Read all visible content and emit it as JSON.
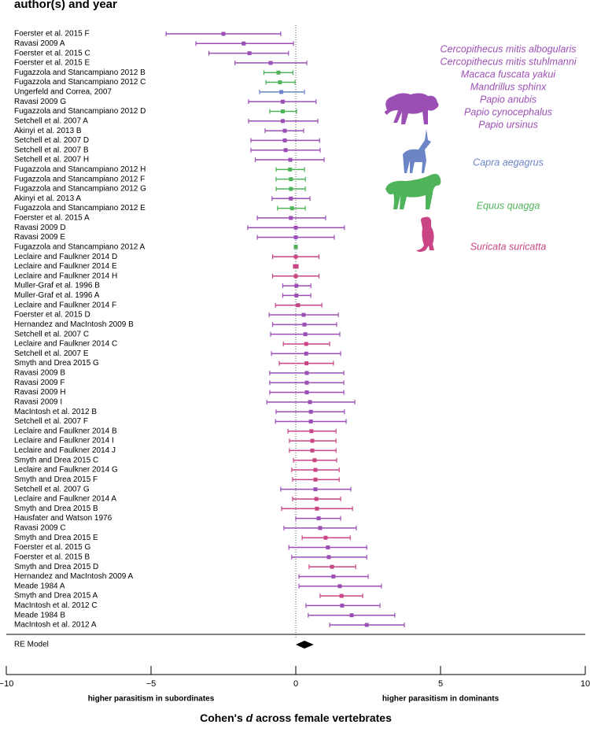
{
  "chart_data": {
    "type": "forest",
    "title": "author(s) and year",
    "categories": [
      "Foerster et al. 2015 F",
      "Ravasi 2009 A",
      "Foerster et al. 2015 C",
      "Foerster et al. 2015 E",
      "Fugazzola and Stancampiano 2012 B",
      "Fugazzola and Stancampiano 2012 C",
      "Ungerfeld and Correa, 2007",
      "Ravasi 2009 G",
      "Fugazzola and Stancampiano 2012 D",
      "Setchell et al. 2007 A",
      "Akinyi et al. 2013 B",
      "Setchell et al. 2007 D",
      "Setchell et al. 2007 B",
      "Setchell et al. 2007 H",
      "Fugazzola and Stancampiano 2012 H",
      "Fugazzola and Stancampiano 2012 F",
      "Fugazzola and Stancampiano 2012 G",
      "Akinyi et al. 2013 A",
      "Fugazzola and Stancampiano 2012 E",
      "Foerster et al. 2015 A",
      "Ravasi 2009 D",
      "Ravasi 2009 E",
      "Fugazzola and Stancampiano 2012 A",
      "Leclaire and Faulkner 2014 D",
      "Leclaire and Faulkner 2014 E",
      "Leclaire and Faulkner 2014 H",
      "Muller-Graf et al. 1996 B",
      "Muller-Graf et al. 1996 A",
      "Leclaire and Faulkner 2014 F",
      "Foerster et al. 2015 D",
      "Hernandez and MacIntosh 2009 B",
      "Setchell et al. 2007 C",
      "Leclaire and Faulkner 2014 C",
      "Setchell et al. 2007 E",
      "Smyth and Drea 2015 G",
      "Ravasi 2009 B",
      "Ravasi 2009 F",
      "Ravasi 2009 H",
      "Ravasi 2009 I",
      "MacIntosh et al. 2012 B",
      "Setchell et al. 2007 F",
      "Leclaire and Faulkner 2014 B",
      "Leclaire and Faulkner 2014 I",
      "Leclaire and Faulkner 2014 J",
      "Smyth and Drea 2015 C",
      "Leclaire and Faulkner 2014 G",
      "Smyth and Drea 2015 F",
      "Setchell et al. 2007 G",
      "Leclaire and Faulkner 2014 A",
      "Smyth and Drea 2015 B",
      "Hausfater and Watson 1976",
      "Ravasi 2009 C",
      "Smyth and Drea 2015 E",
      "Foerster et al. 2015 G",
      "Foerster et al. 2015 B",
      "Smyth and Drea 2015 D",
      "Hernandez and MacIntosh 2009 A",
      "Meade 1984 A",
      "Smyth and Drea 2015 A",
      "MacIntosh et al. 2012 C",
      "Meade 1984 B",
      "MacIntosh et al. 2012 A"
    ],
    "values": [
      -2.5,
      -1.8,
      -1.6,
      -0.87,
      -0.6,
      -0.55,
      -0.5,
      -0.45,
      -0.45,
      -0.45,
      -0.38,
      -0.38,
      -0.35,
      -0.19,
      -0.2,
      -0.17,
      -0.17,
      -0.17,
      -0.13,
      -0.17,
      0,
      0,
      0,
      0,
      0,
      0,
      0.02,
      0.02,
      0.08,
      0.27,
      0.3,
      0.33,
      0.36,
      0.36,
      0.37,
      0.38,
      0.38,
      0.38,
      0.49,
      0.52,
      0.52,
      0.54,
      0.57,
      0.57,
      0.65,
      0.68,
      0.68,
      0.68,
      0.71,
      0.73,
      0.79,
      0.84,
      1.03,
      1.11,
      1.14,
      1.25,
      1.3,
      1.52,
      1.58,
      1.6,
      1.93,
      2.45
    ],
    "ci_lower": [
      -4.48,
      -3.45,
      -3.0,
      -2.1,
      -1.1,
      -1.03,
      -1.25,
      -1.63,
      -0.9,
      -1.63,
      -1.06,
      -1.55,
      -1.55,
      -1.4,
      -0.68,
      -0.68,
      -0.68,
      -0.82,
      -0.63,
      -1.33,
      -1.66,
      -1.33,
      -0.05,
      -0.8,
      -0.08,
      -0.8,
      -0.45,
      -0.45,
      -0.7,
      -0.92,
      -0.8,
      -0.87,
      -0.43,
      -0.84,
      -0.57,
      -0.9,
      -0.9,
      -0.9,
      -1.0,
      -0.68,
      -0.7,
      -0.27,
      -0.22,
      -0.22,
      -0.08,
      -0.14,
      -0.11,
      -0.52,
      -0.11,
      -0.49,
      0,
      -0.41,
      0.22,
      -0.24,
      -0.14,
      0.46,
      0.11,
      0.11,
      0.84,
      0.35,
      0.43,
      1.17
    ],
    "ci_upper": [
      -0.52,
      -0.08,
      -0.25,
      0.38,
      -0.1,
      -0.03,
      0.3,
      0.7,
      0.03,
      0.76,
      0.27,
      0.82,
      0.84,
      0.98,
      0.3,
      0.33,
      0.33,
      0.49,
      0.33,
      1.03,
      1.68,
      1.33,
      0.05,
      0.8,
      0.08,
      0.8,
      0.52,
      0.52,
      0.9,
      1.47,
      1.41,
      1.52,
      1.17,
      1.55,
      1.3,
      1.66,
      1.66,
      1.66,
      2.04,
      1.68,
      1.74,
      1.39,
      1.39,
      1.39,
      1.41,
      1.5,
      1.5,
      1.9,
      1.55,
      1.96,
      1.55,
      2.09,
      1.88,
      2.45,
      2.45,
      2.07,
      2.5,
      2.96,
      2.31,
      2.91,
      3.42,
      3.75
    ],
    "colors": [
      "#9b4fb5",
      "#9b4fb5",
      "#9b4fb5",
      "#9b4fb5",
      "#4fb35a",
      "#4fb35a",
      "#6b85c6",
      "#9b4fb5",
      "#4fb35a",
      "#9b4fb5",
      "#9b4fb5",
      "#9b4fb5",
      "#9b4fb5",
      "#9b4fb5",
      "#4fb35a",
      "#4fb35a",
      "#4fb35a",
      "#9b4fb5",
      "#4fb35a",
      "#9b4fb5",
      "#9b4fb5",
      "#9b4fb5",
      "#4fb35a",
      "#c94585",
      "#c94585",
      "#c94585",
      "#9b4fb5",
      "#9b4fb5",
      "#c94585",
      "#9b4fb5",
      "#9b4fb5",
      "#9b4fb5",
      "#c94585",
      "#9b4fb5",
      "#c94585",
      "#9b4fb5",
      "#9b4fb5",
      "#9b4fb5",
      "#9b4fb5",
      "#9b4fb5",
      "#9b4fb5",
      "#c94585",
      "#c94585",
      "#c94585",
      "#c94585",
      "#c94585",
      "#c94585",
      "#9b4fb5",
      "#c94585",
      "#c94585",
      "#9b4fb5",
      "#9b4fb5",
      "#c94585",
      "#9b4fb5",
      "#9b4fb5",
      "#c94585",
      "#9b4fb5",
      "#9b4fb5",
      "#c94585",
      "#9b4fb5",
      "#9b4fb5",
      "#9b4fb5"
    ],
    "summary": {
      "label": "RE Model",
      "value": 0.3,
      "ci_lower": 0,
      "ci_upper": 0.62
    },
    "legend": [
      {
        "names": [
          "Cercopithecus mitis albogularis",
          "Cercopithecus mitis stuhlmanni",
          "Macaca fuscata yakui",
          "Mandrillus sphinx",
          "Papio anubis",
          "Papio cynocephalus",
          "Papio ursinus"
        ],
        "color": "#9b4fb5"
      },
      {
        "names": [
          "Capra aegagrus"
        ],
        "color": "#6b85c6"
      },
      {
        "names": [
          "Equus quagga"
        ],
        "color": "#4fb35a"
      },
      {
        "names": [
          "Suricata suricatta"
        ],
        "color": "#c94585"
      }
    ],
    "xlim": [
      -10,
      10
    ],
    "xticks": [
      {
        "value": -10,
        "label": "−10"
      },
      {
        "value": -5,
        "label": "−5"
      },
      0,
      5,
      10
    ],
    "left_note": "higher parasitism in subordinates",
    "right_note": "higher parasitism in dominants",
    "xlabel": [
      "Cohen's ",
      "d",
      " across female vertebrates"
    ]
  }
}
